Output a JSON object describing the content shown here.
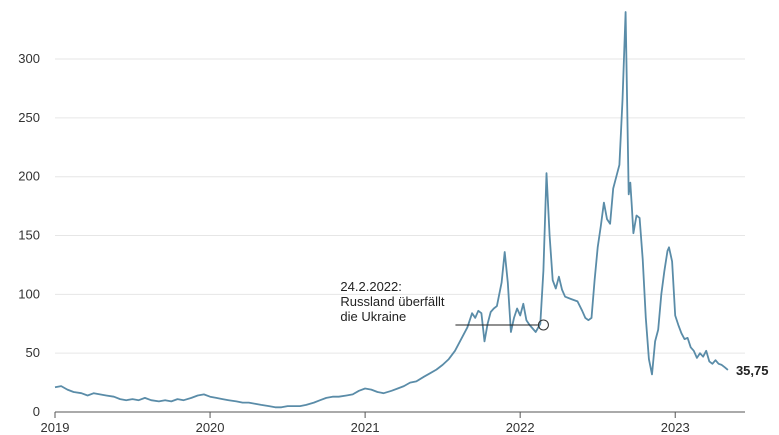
{
  "chart_data": {
    "type": "line",
    "colors": {
      "line": "#5a8ca8",
      "grid": "#e6e6e6",
      "axis": "#555555"
    },
    "ylim": [
      0,
      340
    ],
    "y_ticks": [
      {
        "value": 0,
        "label": "0"
      },
      {
        "value": 50,
        "label": "50"
      },
      {
        "value": 100,
        "label": "100"
      },
      {
        "value": 150,
        "label": "150"
      },
      {
        "value": 200,
        "label": "200"
      },
      {
        "value": 250,
        "label": "250"
      },
      {
        "value": 300,
        "label": "300"
      }
    ],
    "x_ticks": [
      {
        "value": 2019,
        "label": "2019"
      },
      {
        "value": 2020,
        "label": "2020"
      },
      {
        "value": 2021,
        "label": "2021"
      },
      {
        "value": 2022,
        "label": "2022"
      },
      {
        "value": 2023,
        "label": "2023"
      }
    ],
    "xlim": [
      2019.0,
      2023.45
    ],
    "series": [
      {
        "points": [
          [
            2019.0,
            21
          ],
          [
            2019.04,
            22
          ],
          [
            2019.08,
            19
          ],
          [
            2019.12,
            17
          ],
          [
            2019.17,
            16
          ],
          [
            2019.21,
            14
          ],
          [
            2019.25,
            16
          ],
          [
            2019.29,
            15
          ],
          [
            2019.33,
            14
          ],
          [
            2019.38,
            13
          ],
          [
            2019.42,
            11
          ],
          [
            2019.46,
            10
          ],
          [
            2019.5,
            11
          ],
          [
            2019.54,
            10
          ],
          [
            2019.58,
            12
          ],
          [
            2019.62,
            10
          ],
          [
            2019.67,
            9
          ],
          [
            2019.71,
            10
          ],
          [
            2019.75,
            9
          ],
          [
            2019.79,
            11
          ],
          [
            2019.83,
            10
          ],
          [
            2019.88,
            12
          ],
          [
            2019.92,
            14
          ],
          [
            2019.96,
            15
          ],
          [
            2020.0,
            13
          ],
          [
            2020.04,
            12
          ],
          [
            2020.08,
            11
          ],
          [
            2020.12,
            10
          ],
          [
            2020.17,
            9
          ],
          [
            2020.21,
            8
          ],
          [
            2020.25,
            8
          ],
          [
            2020.29,
            7
          ],
          [
            2020.33,
            6
          ],
          [
            2020.38,
            5
          ],
          [
            2020.42,
            4
          ],
          [
            2020.46,
            4
          ],
          [
            2020.5,
            5
          ],
          [
            2020.54,
            5
          ],
          [
            2020.58,
            5
          ],
          [
            2020.62,
            6
          ],
          [
            2020.67,
            8
          ],
          [
            2020.71,
            10
          ],
          [
            2020.75,
            12
          ],
          [
            2020.79,
            13
          ],
          [
            2020.83,
            13
          ],
          [
            2020.88,
            14
          ],
          [
            2020.92,
            15
          ],
          [
            2020.96,
            18
          ],
          [
            2021.0,
            20
          ],
          [
            2021.04,
            19
          ],
          [
            2021.08,
            17
          ],
          [
            2021.12,
            16
          ],
          [
            2021.17,
            18
          ],
          [
            2021.21,
            20
          ],
          [
            2021.25,
            22
          ],
          [
            2021.29,
            25
          ],
          [
            2021.33,
            26
          ],
          [
            2021.38,
            30
          ],
          [
            2021.42,
            33
          ],
          [
            2021.46,
            36
          ],
          [
            2021.5,
            40
          ],
          [
            2021.54,
            45
          ],
          [
            2021.58,
            52
          ],
          [
            2021.62,
            62
          ],
          [
            2021.66,
            72
          ],
          [
            2021.69,
            84
          ],
          [
            2021.71,
            80
          ],
          [
            2021.73,
            86
          ],
          [
            2021.75,
            84
          ],
          [
            2021.77,
            60
          ],
          [
            2021.79,
            75
          ],
          [
            2021.81,
            85
          ],
          [
            2021.83,
            88
          ],
          [
            2021.85,
            90
          ],
          [
            2021.88,
            110
          ],
          [
            2021.9,
            136
          ],
          [
            2021.92,
            110
          ],
          [
            2021.94,
            68
          ],
          [
            2021.96,
            80
          ],
          [
            2021.98,
            88
          ],
          [
            2022.0,
            82
          ],
          [
            2022.02,
            92
          ],
          [
            2022.04,
            78
          ],
          [
            2022.06,
            74
          ],
          [
            2022.1,
            68
          ],
          [
            2022.13,
            75
          ],
          [
            2022.15,
            120
          ],
          [
            2022.17,
            203
          ],
          [
            2022.19,
            150
          ],
          [
            2022.21,
            112
          ],
          [
            2022.23,
            105
          ],
          [
            2022.25,
            115
          ],
          [
            2022.27,
            104
          ],
          [
            2022.29,
            98
          ],
          [
            2022.33,
            96
          ],
          [
            2022.37,
            94
          ],
          [
            2022.4,
            86
          ],
          [
            2022.42,
            80
          ],
          [
            2022.44,
            78
          ],
          [
            2022.46,
            80
          ],
          [
            2022.48,
            112
          ],
          [
            2022.5,
            140
          ],
          [
            2022.52,
            158
          ],
          [
            2022.54,
            178
          ],
          [
            2022.56,
            164
          ],
          [
            2022.58,
            160
          ],
          [
            2022.6,
            190
          ],
          [
            2022.62,
            200
          ],
          [
            2022.64,
            210
          ],
          [
            2022.66,
            265
          ],
          [
            2022.68,
            340
          ],
          [
            2022.69,
            260
          ],
          [
            2022.7,
            185
          ],
          [
            2022.71,
            195
          ],
          [
            2022.72,
            175
          ],
          [
            2022.73,
            152
          ],
          [
            2022.75,
            167
          ],
          [
            2022.77,
            165
          ],
          [
            2022.79,
            130
          ],
          [
            2022.81,
            80
          ],
          [
            2022.83,
            45
          ],
          [
            2022.85,
            32
          ],
          [
            2022.87,
            60
          ],
          [
            2022.89,
            70
          ],
          [
            2022.91,
            100
          ],
          [
            2022.93,
            120
          ],
          [
            2022.95,
            137
          ],
          [
            2022.96,
            140
          ],
          [
            2022.98,
            128
          ],
          [
            2023.0,
            82
          ],
          [
            2023.02,
            74
          ],
          [
            2023.04,
            67
          ],
          [
            2023.06,
            62
          ],
          [
            2023.08,
            63
          ],
          [
            2023.1,
            55
          ],
          [
            2023.12,
            52
          ],
          [
            2023.14,
            46
          ],
          [
            2023.16,
            50
          ],
          [
            2023.18,
            47
          ],
          [
            2023.2,
            52
          ],
          [
            2023.22,
            43
          ],
          [
            2023.24,
            41
          ],
          [
            2023.26,
            44
          ],
          [
            2023.28,
            41
          ],
          [
            2023.3,
            40
          ],
          [
            2023.32,
            38
          ],
          [
            2023.34,
            35.75
          ]
        ]
      }
    ],
    "annotation": {
      "lines": [
        "24.2.2022:",
        "Russland überfällt",
        "die Ukraine"
      ],
      "x": 2022.15,
      "y": 74
    },
    "end_label": "35,75"
  }
}
